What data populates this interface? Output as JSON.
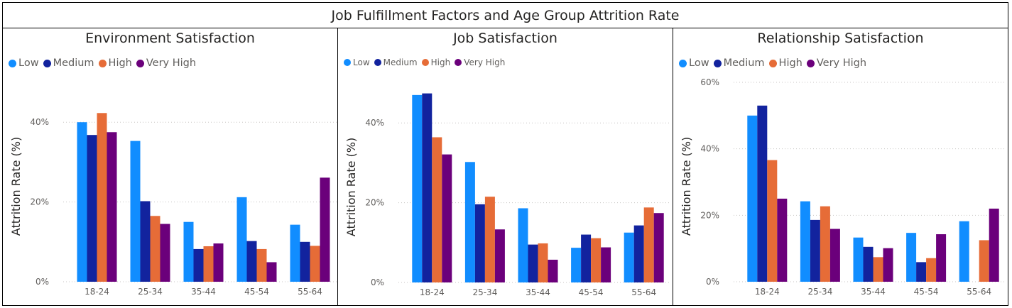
{
  "page_title": "Job Fulfillment Factors and Age Group Attrition Rate",
  "legend": {
    "labels": [
      "Low",
      "Medium",
      "High",
      "Very High"
    ]
  },
  "colors": {
    "Low": "#118DFF",
    "Medium": "#12239E",
    "High": "#E66C37",
    "Very High": "#6B007B"
  },
  "chart_data": [
    {
      "type": "bar",
      "title": "Environment Satisfaction",
      "xlabel": "",
      "ylabel": "Attrition Rate (%)",
      "categories": [
        "18-24",
        "25-34",
        "35-44",
        "45-54",
        "55-64"
      ],
      "y_ticks": [
        "0%",
        "20%",
        "40%"
      ],
      "ylim": [
        0,
        50
      ],
      "grid": true,
      "legend_position": "top-left",
      "series": [
        {
          "name": "Low",
          "values": [
            40.0,
            35.3,
            15.0,
            21.2,
            14.3
          ]
        },
        {
          "name": "Medium",
          "values": [
            36.8,
            20.2,
            8.2,
            10.2,
            10.0
          ]
        },
        {
          "name": "High",
          "values": [
            42.3,
            16.5,
            8.9,
            8.2,
            9.0
          ]
        },
        {
          "name": "Very High",
          "values": [
            37.5,
            14.5,
            9.6,
            4.9,
            26.1
          ]
        }
      ]
    },
    {
      "type": "bar",
      "title": "Job Satisfaction",
      "xlabel": "",
      "ylabel": "Attrition Rate (%)",
      "categories": [
        "18-24",
        "25-34",
        "35-44",
        "45-54",
        "55-64"
      ],
      "y_ticks": [
        "0%",
        "20%",
        "40%"
      ],
      "ylim": [
        0,
        50
      ],
      "grid": true,
      "legend_position": "top-left",
      "series": [
        {
          "name": "Low",
          "values": [
            47.0,
            30.2,
            18.6,
            8.7,
            12.5
          ]
        },
        {
          "name": "Medium",
          "values": [
            47.4,
            19.6,
            9.5,
            12.0,
            14.3
          ]
        },
        {
          "name": "High",
          "values": [
            36.4,
            21.5,
            9.8,
            11.1,
            18.8
          ]
        },
        {
          "name": "Very High",
          "values": [
            32.1,
            13.3,
            5.7,
            8.8,
            17.4
          ]
        }
      ]
    },
    {
      "type": "bar",
      "title": "Relationship Satisfaction",
      "xlabel": "",
      "ylabel": "Attrition Rate (%)",
      "categories": [
        "18-24",
        "25-34",
        "35-44",
        "45-54",
        "55-64"
      ],
      "y_ticks": [
        "0%",
        "20%",
        "40%",
        "60%"
      ],
      "ylim": [
        0,
        60
      ],
      "grid": true,
      "legend_position": "top-left",
      "series": [
        {
          "name": "Low",
          "values": [
            50.0,
            24.2,
            13.3,
            14.7,
            18.2
          ]
        },
        {
          "name": "Medium",
          "values": [
            53.0,
            18.6,
            10.5,
            5.9,
            0
          ]
        },
        {
          "name": "High",
          "values": [
            36.6,
            22.7,
            7.4,
            7.1,
            12.5
          ]
        },
        {
          "name": "Very High",
          "values": [
            25.0,
            15.9,
            10.1,
            14.3,
            22.0
          ]
        }
      ]
    }
  ]
}
